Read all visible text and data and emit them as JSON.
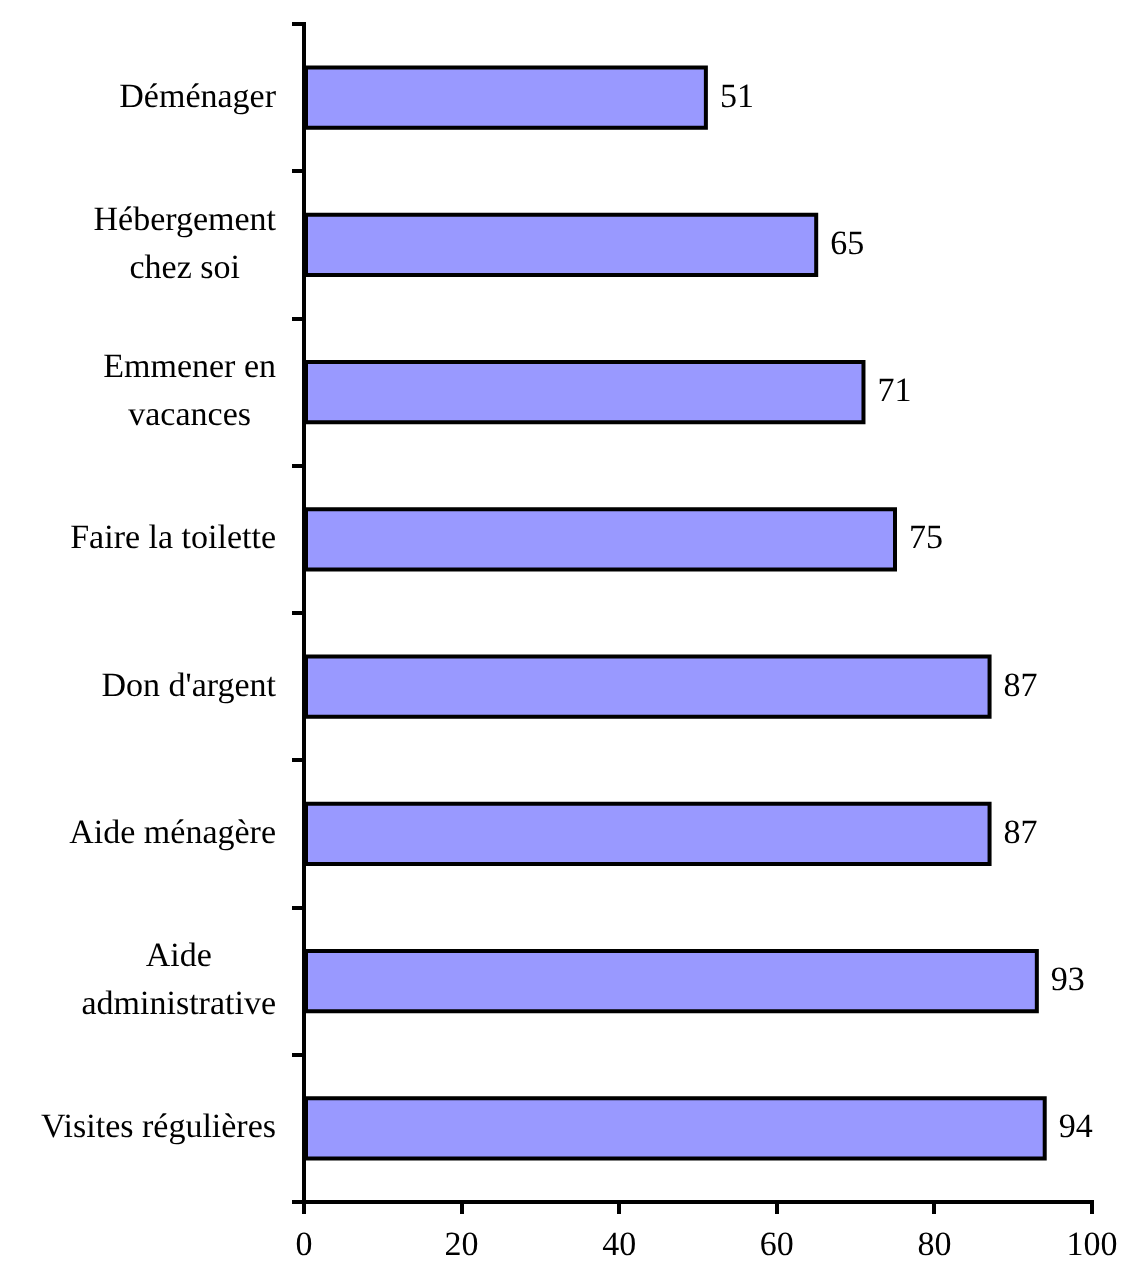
{
  "chart_data": {
    "type": "bar",
    "orientation": "horizontal",
    "categories": [
      "Déménager",
      "Hébergement\nchez soi",
      "Emmener en\nvacances",
      "Faire la toilette",
      "Don d'argent",
      "Aide ménagère",
      "Aide\nadministrative",
      "Visites régulières"
    ],
    "values": [
      51,
      65,
      71,
      75,
      87,
      87,
      93,
      94
    ],
    "color": "#9999ff",
    "xlim": [
      0,
      100
    ],
    "xticks": [
      0,
      20,
      40,
      60,
      80,
      100
    ],
    "data_labels": true
  }
}
